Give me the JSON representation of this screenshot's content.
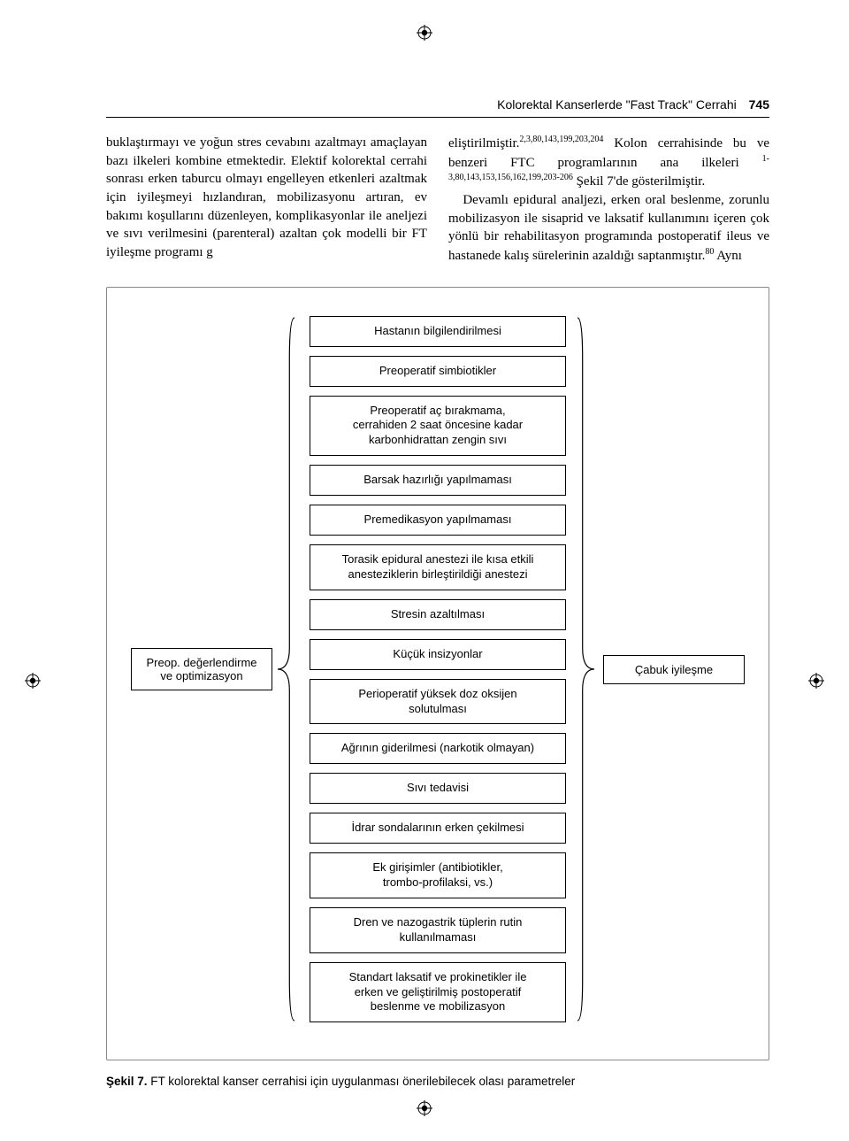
{
  "page": {
    "running_title": "Kolorektal Kanserlerde \"Fast Track\" Cerrahi",
    "page_number": "745"
  },
  "text": {
    "left_col": "buklaştırmayı ve yoğun stres cevabını azaltmayı amaçlayan bazı ilkeleri kombine etmektedir. Elektif kolorektal cerrahi sonrası erken taburcu olmayı engelleyen etkenleri azaltmak için iyileşmeyi hızlandıran, mobilizasyonu artıran, ev bakımı koşullarını düzenleyen, komplikasyonlar ile aneljezi ve sıvı verilmesini (parenteral) azaltan çok modelli bir FT iyileşme programı g",
    "right_pre": "eliştirilmiştir.",
    "right_sup1": "2,3,80,143,199,203,204",
    "right_mid": " Kolon cerrahisinde bu ve benzeri FTC programlarının ana ilkeleri ",
    "right_sup2": "1-3,80,143,153,156,162,199,203-206",
    "right_after_sup2": " Şekil 7'de gösterilmiştir.",
    "right_para2_pre": "Devamlı epidural analjezi, erken oral beslenme, zorunlu mobilizasyon ile sisaprid ve laksatif kullanımını içeren çok yönlü bir rehabilitasyon programında postoperatif ileus ve hastanede kalış sürelerinin azaldığı saptanmıştır.",
    "right_sup3": "80",
    "right_para2_post": " Aynı"
  },
  "figure": {
    "left_box": "Preop. değerlendirme\nve optimizasyon",
    "right_box": "Çabuk iyileşme",
    "items": [
      "Hastanın bilgilendirilmesi",
      "Preoperatif simbiotikler",
      "Preoperatif aç bırakmama,\ncerrahiden 2 saat öncesine kadar\nkarbonhidrattan zengin sıvı",
      "Barsak hazırlığı yapılmaması",
      "Premedikasyon yapılmaması",
      "Torasik epidural anestezi ile kısa etkili\nanesteziklerin birleştirildiği anestezi",
      "Stresin azaltılması",
      "Küçük insizyonlar",
      "Perioperatif yüksek doz oksijen\nsolutulması",
      "Ağrının giderilmesi (narkotik olmayan)",
      "Sıvı tedavisi",
      "İdrar sondalarının erken çekilmesi",
      "Ek girişimler (antibiotikler,\ntrombo-profilaksi, vs.)",
      "Dren ve nazogastrik tüplerin rutin\nkullanılmaması",
      "Standart laksatif ve prokinetikler ile\nerken ve geliştirilmiş postoperatif\nbeslenme ve mobilizasyon"
    ],
    "caption_lead": "Şekil 7.",
    "caption_rest": " FT kolorektal kanser cerrahisi için uygulanması önerilebilecek olası parametreler"
  },
  "style": {
    "brace_height": 780,
    "brace_width": 22,
    "brace_stroke": "#000000",
    "brace_stroke_width": 1.2,
    "box_border": "#000000",
    "figure_border": "#888888",
    "body_font_size": 15,
    "sans_font_size": 13
  }
}
